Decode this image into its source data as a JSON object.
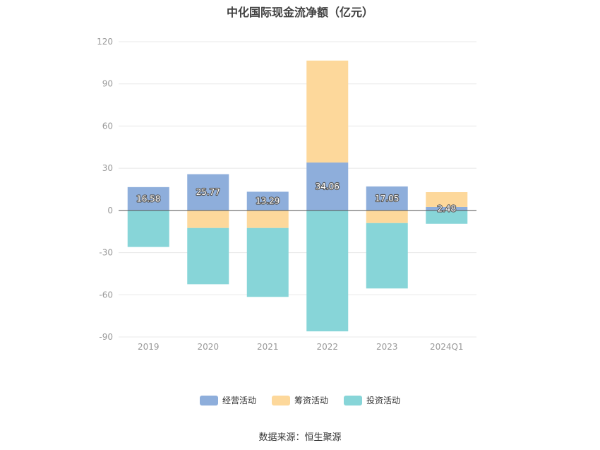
{
  "chart_data": {
    "type": "bar",
    "stacked": true,
    "title": "中化国际现金流净额（亿元）",
    "categories": [
      "2019",
      "2020",
      "2021",
      "2022",
      "2023",
      "2024Q1"
    ],
    "ylim": [
      -90,
      120
    ],
    "yticks": [
      "120",
      "90",
      "60",
      "30",
      "0",
      "-30",
      "-60",
      "-90"
    ],
    "grid": true,
    "legend_position": "bottom",
    "series": [
      {
        "name": "经营活动",
        "color": "#8eaedb",
        "values": [
          16.58,
          25.77,
          13.29,
          34.06,
          17.05,
          2.48
        ],
        "labels": [
          "16.58",
          "25.77",
          "13.29",
          "34.06",
          "17.05",
          "2.48"
        ]
      },
      {
        "name": "筹资活动",
        "color": "#fdd89b",
        "values": [
          0,
          -12.5,
          -12.5,
          72.5,
          -9,
          10.5
        ]
      },
      {
        "name": "投资活动",
        "color": "#87d5d8",
        "values": [
          -26,
          -40,
          -49,
          -86,
          -46.5,
          -9.5
        ]
      }
    ]
  },
  "source": "数据来源：恒生聚源"
}
